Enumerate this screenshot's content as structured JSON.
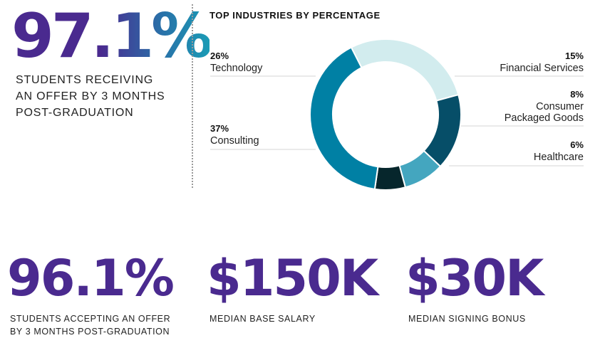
{
  "stat_main": {
    "value": "97.1%",
    "caption_lines": [
      "STUDENTS RECEIVING",
      "AN OFFER BY 3 MONTHS",
      "POST-GRADUATION"
    ]
  },
  "chart_data": {
    "type": "pie",
    "title": "TOP INDUSTRIES BY PERCENTAGE",
    "donut": true,
    "series": [
      {
        "name": "Technology",
        "label_lines": [
          "Technology"
        ],
        "value": 26,
        "pct": "26%",
        "color": "#d2ecee"
      },
      {
        "name": "Financial Services",
        "label_lines": [
          "Financial Services"
        ],
        "value": 15,
        "pct": "15%",
        "color": "#064e68"
      },
      {
        "name": "Consumer Packaged Goods",
        "label_lines": [
          "Consumer",
          "Packaged Goods"
        ],
        "value": 8,
        "pct": "8%",
        "color": "#44a6bf"
      },
      {
        "name": "Healthcare",
        "label_lines": [
          "Healthcare"
        ],
        "value": 6,
        "pct": "6%",
        "color": "#06262c"
      },
      {
        "name": "Consulting",
        "label_lines": [
          "Consulting"
        ],
        "value": 37,
        "pct": "37%",
        "color": "#0080a4"
      }
    ]
  },
  "bottom_stats": [
    {
      "value": "96.1%",
      "caption_lines": [
        "STUDENTS ACCEPTING AN OFFER",
        "BY 3 MONTHS POST-GRADUATION"
      ]
    },
    {
      "value": "$150K",
      "caption_lines": [
        "MEDIAN BASE SALARY"
      ]
    },
    {
      "value": "$30K",
      "caption_lines": [
        "MEDIAN SIGNING BONUS"
      ]
    }
  ]
}
